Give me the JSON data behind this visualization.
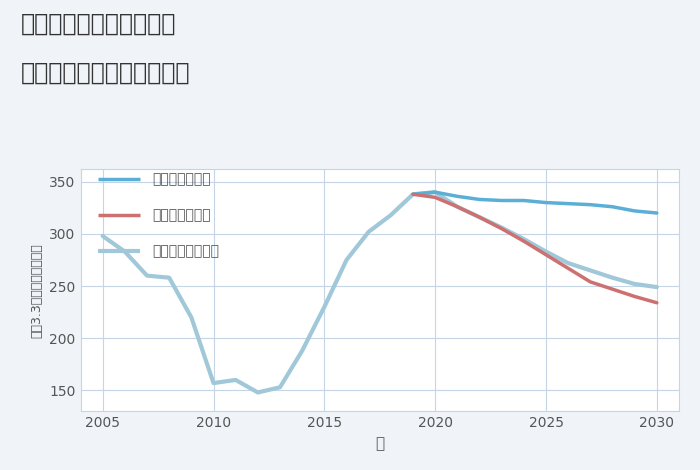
{
  "title_line1": "東京都世田谷区東玉川の",
  "title_line2": "中古マンションの価格推移",
  "xlabel": "年",
  "ylabel": "平（3.3m²）単価（万円）",
  "background_color": "#f0f4f8",
  "plot_bg_color": "#ffffff",
  "grid_color": "#c5d5e5",
  "xlim": [
    2004,
    2031
  ],
  "ylim": [
    130,
    362
  ],
  "yticks": [
    150,
    200,
    250,
    300,
    350
  ],
  "xticks": [
    2005,
    2010,
    2015,
    2020,
    2025,
    2030
  ],
  "good_scenario": {
    "label": "グッドシナリオ",
    "color": "#5bafd6",
    "linewidth": 2.5,
    "x": [
      2019,
      2020,
      2021,
      2022,
      2023,
      2024,
      2025,
      2026,
      2027,
      2028,
      2029,
      2030
    ],
    "y": [
      338,
      340,
      336,
      333,
      332,
      332,
      330,
      329,
      328,
      326,
      322,
      320
    ]
  },
  "bad_scenario": {
    "label": "バッドシナリオ",
    "color": "#cc7070",
    "linewidth": 2.5,
    "x": [
      2019,
      2020,
      2021,
      2022,
      2023,
      2024,
      2025,
      2026,
      2027,
      2028,
      2029,
      2030
    ],
    "y": [
      338,
      335,
      326,
      316,
      305,
      293,
      280,
      267,
      254,
      247,
      240,
      234
    ]
  },
  "normal_scenario": {
    "label": "ノーマルシナリオ",
    "color": "#a0c8d8",
    "linewidth": 3.0,
    "x": [
      2005,
      2006,
      2007,
      2008,
      2009,
      2010,
      2011,
      2012,
      2013,
      2014,
      2015,
      2016,
      2017,
      2018,
      2019,
      2020,
      2021,
      2022,
      2023,
      2024,
      2025,
      2026,
      2027,
      2028,
      2029,
      2030
    ],
    "y": [
      298,
      283,
      260,
      258,
      220,
      157,
      160,
      148,
      153,
      188,
      230,
      275,
      302,
      318,
      338,
      340,
      326,
      316,
      306,
      295,
      283,
      272,
      265,
      258,
      252,
      249
    ]
  },
  "title_color": "#333333",
  "tick_color": "#555555",
  "legend_text_color": "#555555"
}
